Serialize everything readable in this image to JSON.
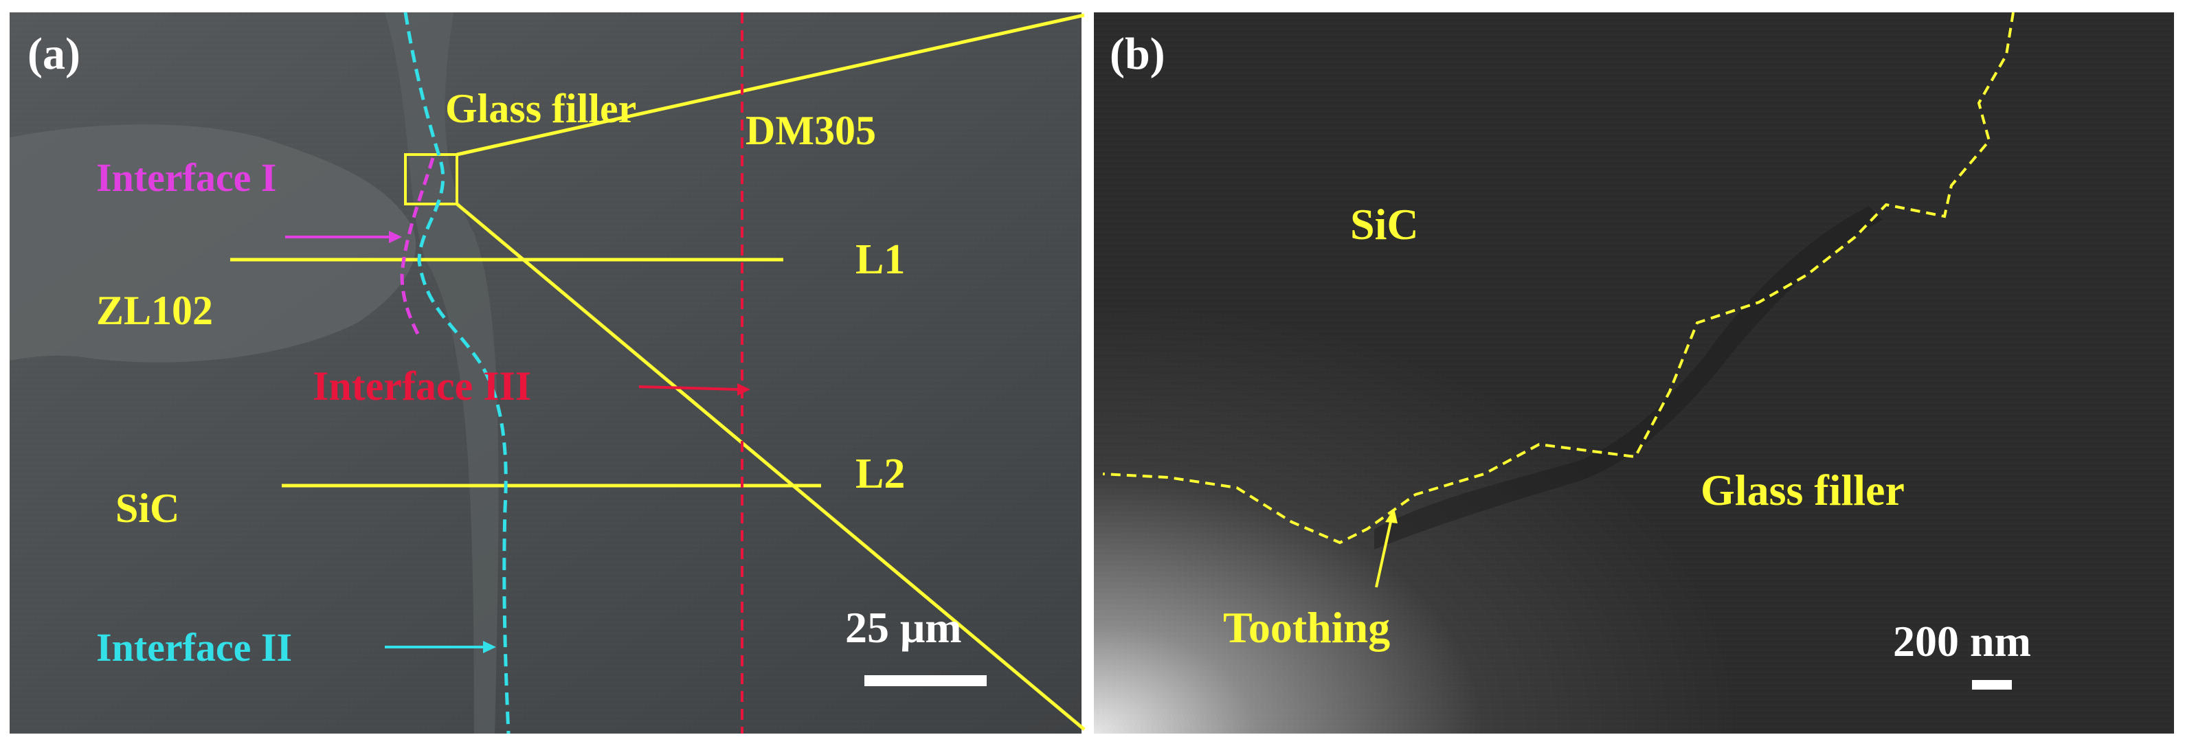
{
  "panels": {
    "a": {
      "label": "(a)",
      "labels": {
        "glass_filler": "Glass filler",
        "dm305": "DM305",
        "interface_1": "Interface I",
        "l1": "L1",
        "zl102": "ZL102",
        "interface_3": "Interface III",
        "l2": "L2",
        "sic": "SiC",
        "interface_2": "Interface II"
      },
      "scale_bar": "25 μm"
    },
    "b": {
      "label": "(b)",
      "labels": {
        "sic": "SiC",
        "glass_filler": "Glass filler",
        "toothing": "Toothing"
      },
      "scale_bar": "200 nm"
    }
  },
  "colors": {
    "annotation": "#ffff33",
    "interface_1": "#e040e0",
    "interface_2": "#33e0e8",
    "interface_3": "#e8163c",
    "label_white": "#ffffff"
  }
}
